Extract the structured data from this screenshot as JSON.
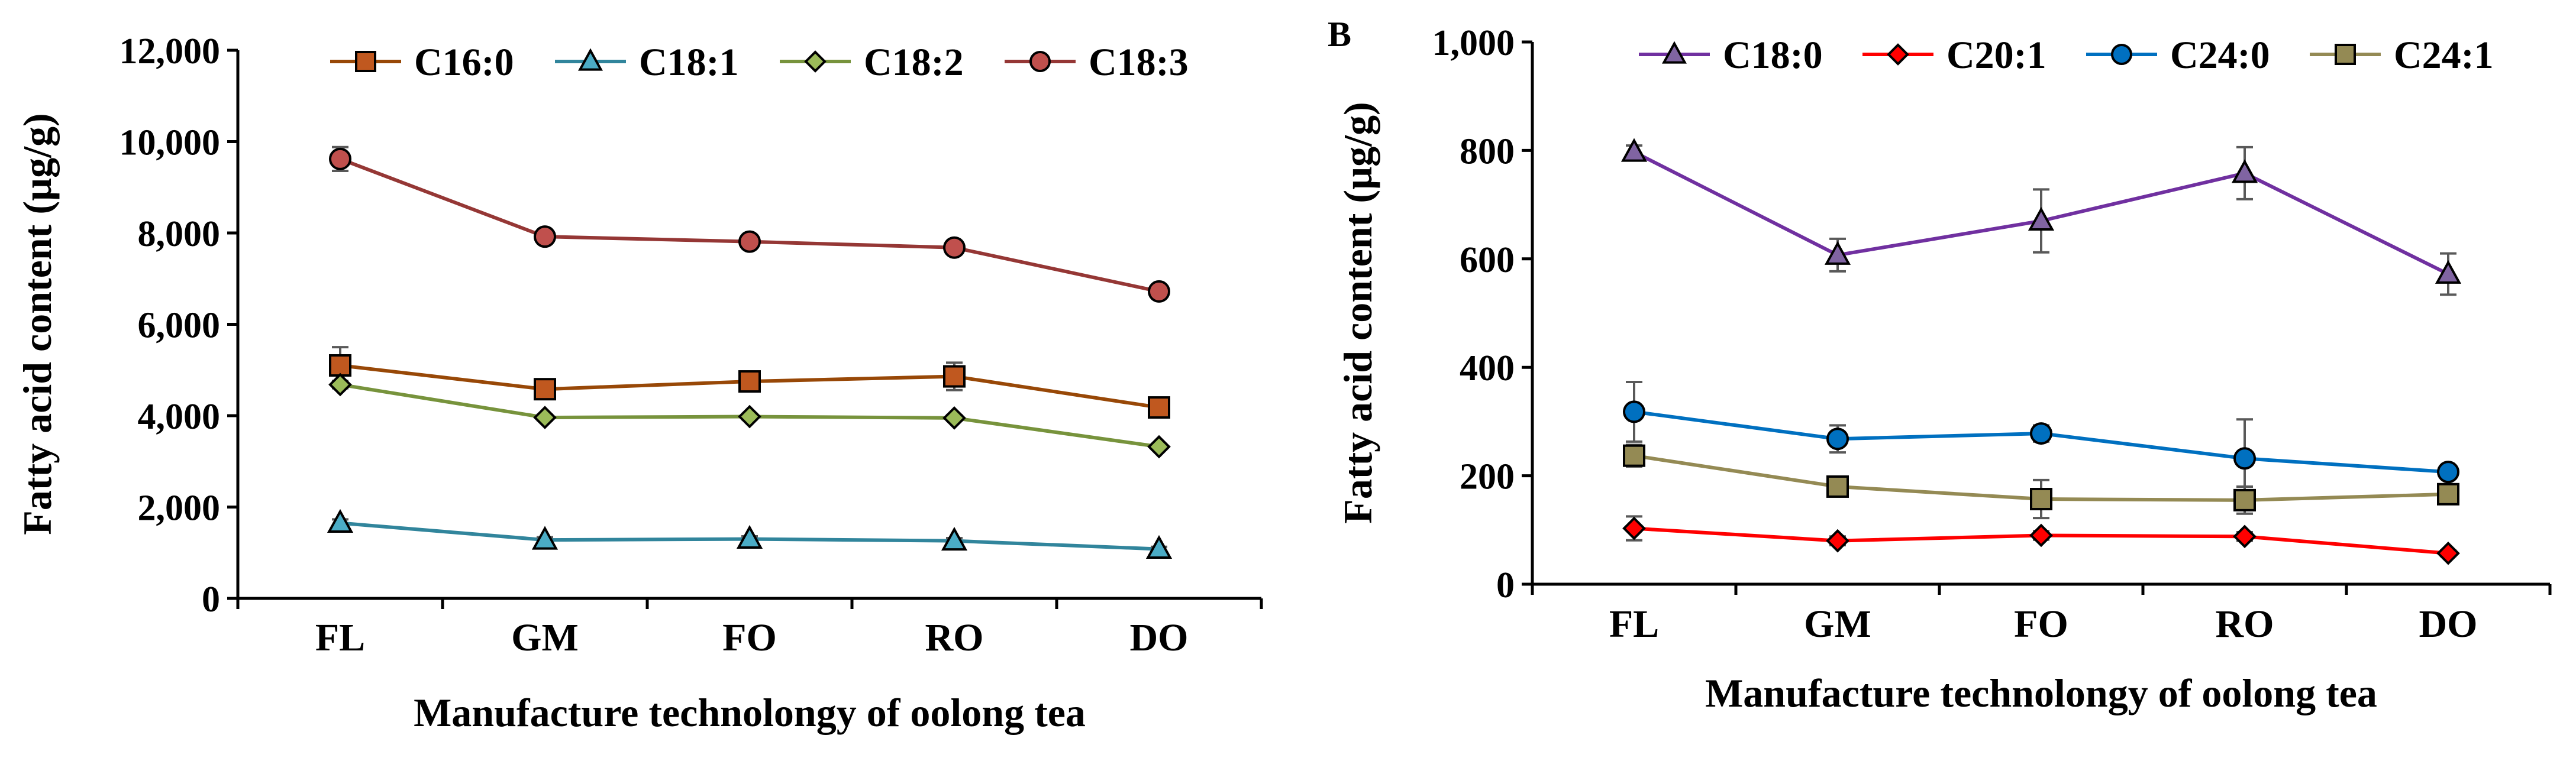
{
  "chart_data": [
    {
      "type": "line",
      "panel_label": "",
      "categories": [
        "FL",
        "GM",
        "FO",
        "RO",
        "DO"
      ],
      "xlabel": "Manufacture technolongy of oolong tea",
      "ylabel": "Fatty acid content (µg/g)",
      "ylim": [
        0,
        12000
      ],
      "yticks": [
        0,
        2000,
        4000,
        6000,
        8000,
        10000,
        12000
      ],
      "ytick_labels": [
        "0",
        "2,000",
        "4,000",
        "6,000",
        "8,000",
        "10,000",
        "12,000"
      ],
      "legend_position": "top",
      "series": [
        {
          "name": "C16:0",
          "marker": "square",
          "color": "#984807",
          "fill": "#c0581f",
          "values": [
            5100,
            4580,
            4750,
            4860,
            4180
          ],
          "errors": [
            400,
            80,
            80,
            300,
            80
          ]
        },
        {
          "name": "C18:1",
          "marker": "triangle",
          "color": "#31859c",
          "fill": "#4bacc6",
          "values": [
            1650,
            1280,
            1300,
            1260,
            1080
          ],
          "errors": [
            80,
            60,
            60,
            60,
            50
          ]
        },
        {
          "name": "C18:2",
          "marker": "diamond",
          "color": "#77933c",
          "fill": "#9bbb59",
          "values": [
            4680,
            3960,
            3980,
            3950,
            3320
          ],
          "errors": [
            80,
            60,
            60,
            60,
            60
          ]
        },
        {
          "name": "C18:3",
          "marker": "circle",
          "color": "#953735",
          "fill": "#c0504d",
          "values": [
            9620,
            7920,
            7810,
            7680,
            6720
          ],
          "errors": [
            260,
            80,
            80,
            80,
            80
          ]
        }
      ]
    },
    {
      "type": "line",
      "panel_label": "B",
      "categories": [
        "FL",
        "GM",
        "FO",
        "RO",
        "DO"
      ],
      "xlabel": "Manufacture technolongy of oolong tea",
      "ylabel": "Fatty acid content (µg/g)",
      "ylim": [
        0,
        1000
      ],
      "yticks": [
        0,
        200,
        400,
        600,
        800,
        1000
      ],
      "ytick_labels": [
        "0",
        "200",
        "400",
        "600",
        "800",
        "1,000"
      ],
      "legend_position": "top",
      "series": [
        {
          "name": "C18:0",
          "marker": "triangle",
          "color": "#7030a0",
          "fill": "#8064a2",
          "values": [
            797,
            607,
            670,
            758,
            572
          ],
          "errors": [
            12,
            30,
            58,
            48,
            38
          ]
        },
        {
          "name": "C20:1",
          "marker": "diamond",
          "color": "#ff0000",
          "fill": "#ff0000",
          "values": [
            103,
            80,
            90,
            88,
            57
          ],
          "errors": [
            22,
            8,
            8,
            8,
            5
          ]
        },
        {
          "name": "C24:0",
          "marker": "circle",
          "color": "#0070c0",
          "fill": "#0070c0",
          "values": [
            318,
            268,
            278,
            232,
            207
          ],
          "errors": [
            55,
            25,
            15,
            72,
            12
          ]
        },
        {
          "name": "C24:1",
          "marker": "square",
          "color": "#948a54",
          "fill": "#948a54",
          "values": [
            237,
            180,
            157,
            155,
            166
          ],
          "errors": [
            20,
            15,
            35,
            25,
            10
          ]
        }
      ]
    }
  ]
}
